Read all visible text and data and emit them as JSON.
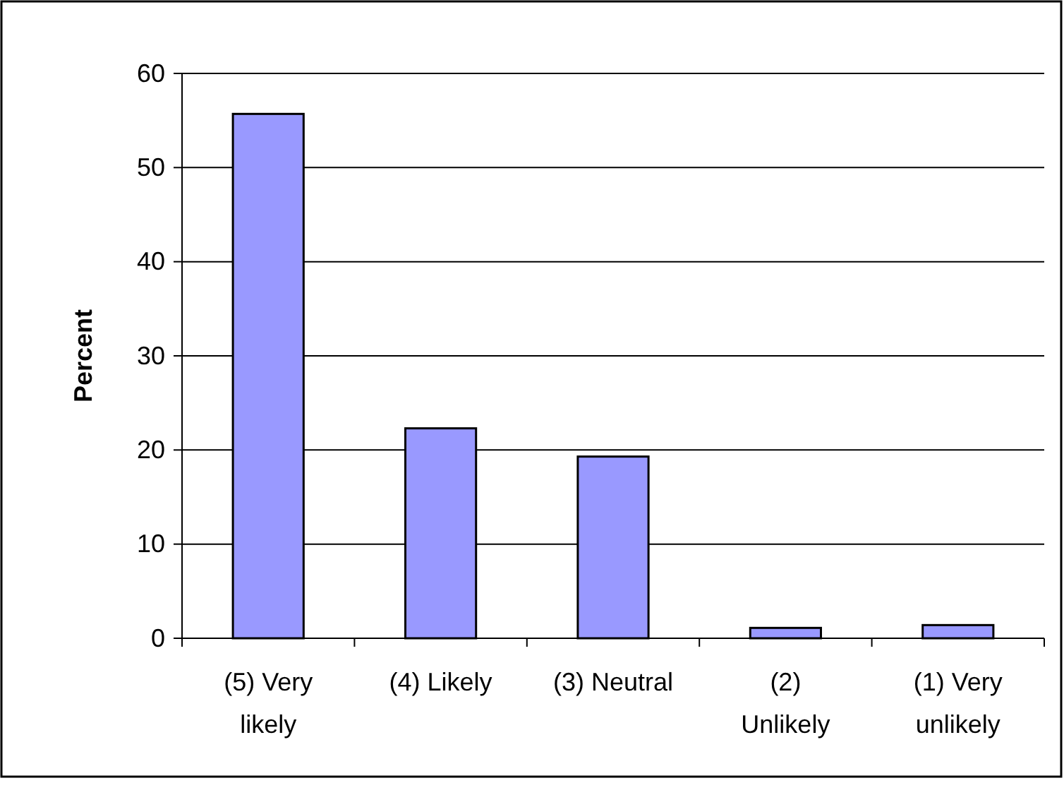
{
  "chart_data": {
    "type": "bar",
    "ylabel": "Percent",
    "categories": [
      "(5) Very likely",
      "(4) Likely",
      "(3) Neutral",
      "(2) Unlikely",
      "(1) Very unlikely"
    ],
    "values": [
      55.7,
      22.3,
      19.3,
      1.1,
      1.4
    ],
    "color": "#9999ff",
    "ylim": [
      0,
      60
    ],
    "yticks": [
      0,
      10,
      20,
      30,
      40,
      50,
      60
    ],
    "grid": "y"
  }
}
